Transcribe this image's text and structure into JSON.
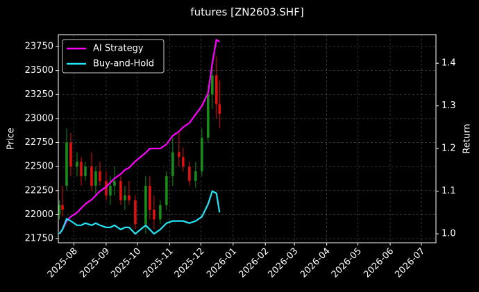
{
  "chart_data": {
    "type": "candlestick",
    "title": "futures [ZN2603.SHF]",
    "ylabel": "Price",
    "y2label": "Return",
    "x": [
      "2025-07-18",
      "2025-07-21",
      "2025-07-25",
      "2025-07-29",
      "2025-08-04",
      "2025-08-08",
      "2025-08-12",
      "2025-08-18",
      "2025-08-22",
      "2025-08-26",
      "2025-09-01",
      "2025-09-05",
      "2025-09-09",
      "2025-09-15",
      "2025-09-19",
      "2025-09-23",
      "2025-09-29",
      "2025-10-09",
      "2025-10-13",
      "2025-10-17",
      "2025-10-23",
      "2025-10-29",
      "2025-11-04",
      "2025-11-10",
      "2025-11-14",
      "2025-11-20",
      "2025-11-26",
      "2025-12-02",
      "2025-12-08",
      "2025-12-12",
      "2025-12-16",
      "2025-12-19"
    ],
    "open": [
      22000,
      22100,
      22300,
      22750,
      22500,
      22550,
      22400,
      22500,
      22300,
      22450,
      22350,
      22200,
      22300,
      22350,
      22150,
      22200,
      22150,
      21900,
      22300,
      22050,
      21950,
      22100,
      22400,
      22650,
      22600,
      22500,
      22350,
      22450,
      22800,
      23250,
      23450,
      23150
    ],
    "high": [
      22150,
      22300,
      22900,
      22850,
      22650,
      22600,
      22550,
      22650,
      22500,
      22550,
      22450,
      22400,
      22500,
      22400,
      22300,
      22350,
      22200,
      22400,
      22400,
      22200,
      22150,
      22450,
      22800,
      22850,
      22700,
      22550,
      22550,
      22900,
      23350,
      23550,
      23650,
      23400
    ],
    "low": [
      21950,
      21980,
      22250,
      22400,
      22400,
      22300,
      22350,
      22250,
      22200,
      22300,
      22150,
      22100,
      22200,
      22100,
      22050,
      22100,
      21850,
      21800,
      21950,
      21850,
      21900,
      22050,
      22300,
      22500,
      22450,
      22300,
      22280,
      22400,
      22750,
      23100,
      23000,
      22900
    ],
    "close": [
      22100,
      22050,
      22750,
      22500,
      22550,
      22400,
      22500,
      22300,
      22450,
      22350,
      22200,
      22300,
      22350,
      22150,
      22200,
      22150,
      21900,
      22300,
      22050,
      21950,
      22100,
      22400,
      22650,
      22600,
      22500,
      22350,
      22450,
      22800,
      23250,
      23450,
      23150,
      23050
    ],
    "up_color": "#1a8c1a",
    "down_color": "#e01010",
    "series": [
      {
        "name": "AI Strategy",
        "color": "#ff00ff",
        "axis": "y2",
        "values": [
          1.0,
          1.01,
          1.03,
          1.04,
          1.05,
          1.06,
          1.07,
          1.08,
          1.09,
          1.1,
          1.11,
          1.12,
          1.13,
          1.14,
          1.15,
          1.155,
          1.17,
          1.19,
          1.2,
          1.2,
          1.2,
          1.21,
          1.23,
          1.24,
          1.25,
          1.26,
          1.28,
          1.3,
          1.33,
          1.4,
          1.455,
          1.45
        ]
      },
      {
        "name": "Buy-and-Hold",
        "color": "#22e5f5",
        "axis": "y2",
        "values": [
          1.0,
          1.01,
          1.035,
          1.03,
          1.02,
          1.02,
          1.025,
          1.02,
          1.025,
          1.02,
          1.015,
          1.015,
          1.02,
          1.01,
          1.015,
          1.015,
          1.0,
          1.02,
          1.01,
          1.0,
          1.01,
          1.025,
          1.03,
          1.03,
          1.03,
          1.025,
          1.03,
          1.04,
          1.07,
          1.1,
          1.095,
          1.05
        ]
      }
    ],
    "xlim": [
      "2025-07-17",
      "2026-07-15"
    ],
    "xticks": [
      {
        "value": "2025-08-01",
        "label": "2025-08"
      },
      {
        "value": "2025-09-01",
        "label": "2025-09"
      },
      {
        "value": "2025-10-01",
        "label": "2025-10"
      },
      {
        "value": "2025-11-01",
        "label": "2025-11"
      },
      {
        "value": "2025-12-01",
        "label": "2025-12"
      },
      {
        "value": "2026-01-01",
        "label": "2026-01"
      },
      {
        "value": "2026-02-01",
        "label": "2026-02"
      },
      {
        "value": "2026-03-01",
        "label": "2026-03"
      },
      {
        "value": "2026-04-01",
        "label": "2026-04"
      },
      {
        "value": "2026-05-01",
        "label": "2026-05"
      },
      {
        "value": "2026-06-01",
        "label": "2026-06"
      },
      {
        "value": "2026-07-01",
        "label": "2026-07"
      }
    ],
    "ylim": [
      21707,
      23873
    ],
    "yticks": [
      21750,
      22000,
      22250,
      22500,
      22750,
      23000,
      23250,
      23500,
      23750
    ],
    "y2lim": [
      0.979,
      1.467
    ],
    "y2ticks": [
      {
        "value": 1,
        "label": "1.0"
      },
      1.1,
      1.2,
      1.3,
      1.4
    ],
    "grid": true,
    "legend": "upper left"
  }
}
